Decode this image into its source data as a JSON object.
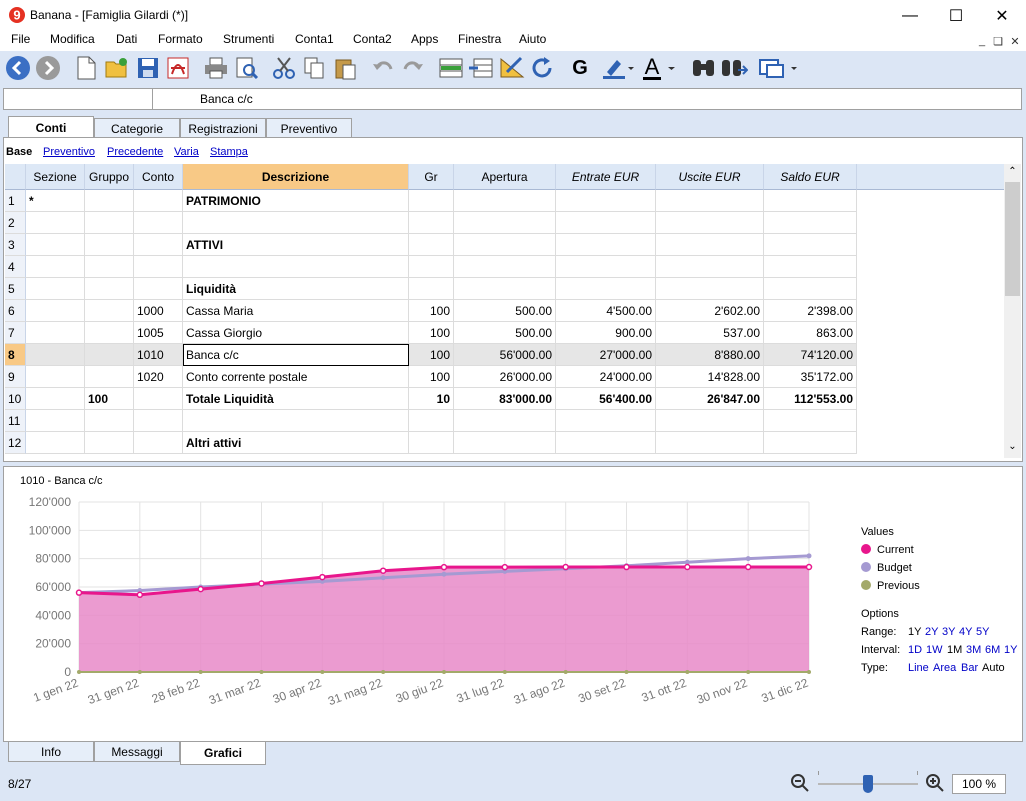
{
  "window": {
    "title": "Banana - [Famiglia Gilardi (*)]"
  },
  "menu": [
    "File",
    "Modifica",
    "Dati",
    "Formato",
    "Strumenti",
    "Conta1",
    "Conta2",
    "Apps",
    "Finestra",
    "Aiuto"
  ],
  "toolbar": {
    "icons": [
      "back-icon",
      "forward-icon",
      "new-file-icon",
      "open-folder-icon",
      "save-icon",
      "pdf-icon",
      "print-icon",
      "print-preview-icon",
      "cut-icon",
      "copy-icon",
      "paste-icon",
      "undo-icon",
      "redo-icon",
      "insert-row-icon",
      "delete-row-icon",
      "edit-ruler-icon",
      "refresh-icon",
      "bold-icon",
      "highlight-color-icon",
      "text-color-icon",
      "find-icon",
      "find-next-icon",
      "window-switch-icon"
    ],
    "bold_label": "G",
    "text_color_label": "A"
  },
  "path_bar": {
    "value": "Banca c/c"
  },
  "tabs": [
    "Conti",
    "Categorie",
    "Registrazioni",
    "Preventivo"
  ],
  "active_tab": "Conti",
  "sub_tabs": [
    "Base",
    "Preventivo",
    "Precedente",
    "Varia",
    "Stampa"
  ],
  "table": {
    "columns": [
      "Sezione",
      "Gruppo",
      "Conto",
      "Descrizione",
      "Gr",
      "Apertura",
      "Entrate EUR",
      "Uscite EUR",
      "Saldo EUR"
    ],
    "rows": [
      {
        "n": "1",
        "sez": "*",
        "grp": "",
        "conto": "",
        "desc": "PATRIMONIO",
        "gr": "",
        "ap": "",
        "ent": "",
        "usc": "",
        "saldo": "",
        "bold": true
      },
      {
        "n": "2",
        "sez": "",
        "grp": "",
        "conto": "",
        "desc": "",
        "gr": "",
        "ap": "",
        "ent": "",
        "usc": "",
        "saldo": ""
      },
      {
        "n": "3",
        "sez": "",
        "grp": "",
        "conto": "",
        "desc": "ATTIVI",
        "gr": "",
        "ap": "",
        "ent": "",
        "usc": "",
        "saldo": "",
        "bold": true
      },
      {
        "n": "4",
        "sez": "",
        "grp": "",
        "conto": "",
        "desc": "",
        "gr": "",
        "ap": "",
        "ent": "",
        "usc": "",
        "saldo": ""
      },
      {
        "n": "5",
        "sez": "",
        "grp": "",
        "conto": "",
        "desc": "Liquidità",
        "gr": "",
        "ap": "",
        "ent": "",
        "usc": "",
        "saldo": "",
        "bold": true
      },
      {
        "n": "6",
        "sez": "",
        "grp": "",
        "conto": "1000",
        "desc": "Cassa Maria",
        "gr": "100",
        "ap": "500.00",
        "ent": "4'500.00",
        "usc": "2'602.00",
        "saldo": "2'398.00"
      },
      {
        "n": "7",
        "sez": "",
        "grp": "",
        "conto": "1005",
        "desc": "Cassa Giorgio",
        "gr": "100",
        "ap": "500.00",
        "ent": "900.00",
        "usc": "537.00",
        "saldo": "863.00"
      },
      {
        "n": "8",
        "sez": "",
        "grp": "",
        "conto": "1010",
        "desc": "Banca c/c",
        "gr": "100",
        "ap": "56'000.00",
        "ent": "27'000.00",
        "usc": "8'880.00",
        "saldo": "74'120.00",
        "current": true
      },
      {
        "n": "9",
        "sez": "",
        "grp": "",
        "conto": "1020",
        "desc": "Conto corrente postale",
        "gr": "100",
        "ap": "26'000.00",
        "ent": "24'000.00",
        "usc": "14'828.00",
        "saldo": "35'172.00"
      },
      {
        "n": "10",
        "sez": "",
        "grp": "100",
        "conto": "",
        "desc": "Totale Liquidità",
        "gr": "10",
        "ap": "83'000.00",
        "ent": "56'400.00",
        "usc": "26'847.00",
        "saldo": "112'553.00",
        "bold": true
      },
      {
        "n": "11",
        "sez": "",
        "grp": "",
        "conto": "",
        "desc": "",
        "gr": "",
        "ap": "",
        "ent": "",
        "usc": "",
        "saldo": ""
      },
      {
        "n": "12",
        "sez": "",
        "grp": "",
        "conto": "",
        "desc": "Altri attivi",
        "gr": "",
        "ap": "",
        "ent": "",
        "usc": "",
        "saldo": "",
        "bold": true
      }
    ]
  },
  "chart_data": {
    "type": "area",
    "title": "1010 - Banca c/c",
    "categories": [
      "1 gen 22",
      "31 gen 22",
      "28 feb 22",
      "31 mar 22",
      "30 apr 22",
      "31 mag 22",
      "30 giu 22",
      "31 lug 22",
      "31 ago 22",
      "30 set 22",
      "31 ott 22",
      "30 nov 22",
      "31 dic 22"
    ],
    "y_ticks": [
      "0",
      "20'000",
      "40'000",
      "60'000",
      "80'000",
      "100'000",
      "120'000"
    ],
    "ylim": [
      0,
      120000
    ],
    "grid": true,
    "series": [
      {
        "name": "Current",
        "color": "#e8168c",
        "values": [
          56000,
          54500,
          58500,
          62500,
          67000,
          71500,
          74000,
          74000,
          74100,
          74100,
          74120,
          74120,
          74120
        ]
      },
      {
        "name": "Budget",
        "color": "#a59ad2",
        "values": [
          56000,
          57500,
          60000,
          62000,
          64000,
          66500,
          69000,
          71000,
          73000,
          75000,
          77500,
          80000,
          82000
        ]
      },
      {
        "name": "Previous",
        "color": "#a3a96a",
        "values": [
          0,
          0,
          0,
          0,
          0,
          0,
          0,
          0,
          0,
          0,
          0,
          0,
          0
        ]
      }
    ],
    "legend_title": "Values"
  },
  "options": {
    "title": "Options",
    "range_label": "Range:",
    "range": [
      "1Y",
      "2Y",
      "3Y",
      "4Y",
      "5Y"
    ],
    "interval_label": "Interval:",
    "interval": [
      "1D",
      "1W",
      "1M",
      "3M",
      "6M",
      "1Y"
    ],
    "type_label": "Type:",
    "type": [
      "Line",
      "Area",
      "Bar",
      "Auto"
    ]
  },
  "bottom_tabs": [
    "Info",
    "Messaggi",
    "Grafici"
  ],
  "status": {
    "position": "8/27",
    "zoom": "100 %"
  }
}
